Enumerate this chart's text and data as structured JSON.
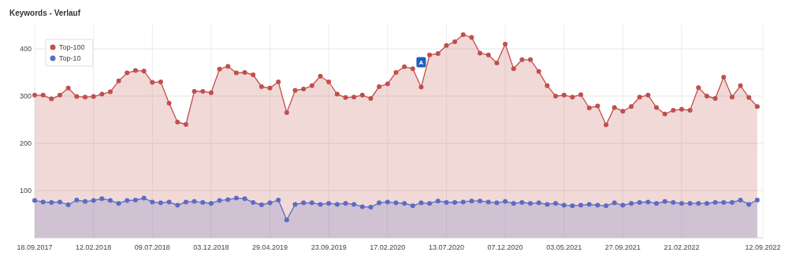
{
  "chart_data": {
    "type": "area",
    "title": "Keywords - Verlauf",
    "x": [
      "2017-09-18",
      "2017-10-09",
      "2017-10-30",
      "2017-11-20",
      "2017-12-11",
      "2018-01-01",
      "2018-01-22",
      "2018-02-12",
      "2018-03-05",
      "2018-03-26",
      "2018-04-16",
      "2018-05-07",
      "2018-05-28",
      "2018-06-18",
      "2018-07-09",
      "2018-07-30",
      "2018-08-20",
      "2018-09-10",
      "2018-10-01",
      "2018-10-22",
      "2018-11-12",
      "2018-12-03",
      "2018-12-24",
      "2019-01-14",
      "2019-02-04",
      "2019-02-25",
      "2019-03-18",
      "2019-04-08",
      "2019-04-29",
      "2019-05-20",
      "2019-06-10",
      "2019-07-01",
      "2019-07-22",
      "2019-08-12",
      "2019-09-02",
      "2019-09-23",
      "2019-10-14",
      "2019-11-04",
      "2019-11-25",
      "2019-12-16",
      "2020-01-06",
      "2020-01-27",
      "2020-02-17",
      "2020-03-09",
      "2020-03-30",
      "2020-04-20",
      "2020-05-11",
      "2020-06-01",
      "2020-06-22",
      "2020-07-13",
      "2020-08-03",
      "2020-08-24",
      "2020-09-14",
      "2020-10-05",
      "2020-10-26",
      "2020-11-16",
      "2020-12-07",
      "2020-12-28",
      "2021-01-18",
      "2021-02-08",
      "2021-03-01",
      "2021-03-22",
      "2021-04-12",
      "2021-05-03",
      "2021-05-24",
      "2021-06-14",
      "2021-07-05",
      "2021-07-26",
      "2021-08-16",
      "2021-09-06",
      "2021-09-27",
      "2021-10-18",
      "2021-11-08",
      "2021-11-29",
      "2021-12-20",
      "2022-01-10",
      "2022-01-31",
      "2022-02-21",
      "2022-03-14",
      "2022-04-04",
      "2022-04-25",
      "2022-05-16",
      "2022-06-06",
      "2022-06-27",
      "2022-07-18",
      "2022-08-08",
      "2022-08-29"
    ],
    "series": [
      {
        "name": "Top-100",
        "color": "#c0504d",
        "values": [
          302,
          302,
          294,
          302,
          317,
          299,
          298,
          299,
          304,
          309,
          332,
          349,
          354,
          353,
          329,
          330,
          285,
          245,
          240,
          310,
          310,
          307,
          357,
          363,
          349,
          350,
          345,
          320,
          317,
          330,
          265,
          312,
          315,
          322,
          342,
          330,
          304,
          297,
          298,
          302,
          295,
          320,
          326,
          350,
          362,
          358,
          319,
          387,
          390,
          407,
          415,
          430,
          424,
          391,
          387,
          370,
          410,
          358,
          377,
          377,
          352,
          322,
          300,
          302,
          298,
          303,
          275,
          279,
          239,
          276,
          268,
          278,
          298,
          302,
          276,
          262,
          270,
          272,
          270,
          318,
          300,
          295,
          340,
          298,
          322,
          297,
          278
        ]
      },
      {
        "name": "Top-10",
        "color": "#5b6cc4",
        "values": [
          79,
          76,
          75,
          76,
          70,
          80,
          77,
          79,
          83,
          79,
          73,
          79,
          80,
          84,
          76,
          74,
          76,
          69,
          76,
          77,
          75,
          73,
          79,
          81,
          84,
          83,
          75,
          70,
          74,
          80,
          38,
          71,
          74,
          74,
          71,
          73,
          71,
          73,
          71,
          66,
          65,
          74,
          76,
          74,
          73,
          68,
          74,
          73,
          78,
          75,
          75,
          76,
          78,
          78,
          76,
          74,
          77,
          73,
          75,
          73,
          74,
          71,
          73,
          69,
          68,
          69,
          71,
          69,
          68,
          74,
          69,
          73,
          75,
          76,
          73,
          77,
          75,
          73,
          73,
          73,
          73,
          75,
          75,
          75,
          80,
          71,
          80
        ]
      }
    ],
    "xlim": [
      "2017-09-18",
      "2022-09-12"
    ],
    "xticks": [
      {
        "value": "2017-09-18",
        "label": "18.09.2017"
      },
      {
        "value": "2018-02-12",
        "label": "12.02.2018"
      },
      {
        "value": "2018-07-09",
        "label": "09.07.2018"
      },
      {
        "value": "2018-12-03",
        "label": "03.12.2018"
      },
      {
        "value": "2019-04-29",
        "label": "29.04.2019"
      },
      {
        "value": "2019-09-23",
        "label": "23.09.2019"
      },
      {
        "value": "2020-02-17",
        "label": "17.02.2020"
      },
      {
        "value": "2020-07-13",
        "label": "13.07.2020"
      },
      {
        "value": "2020-12-07",
        "label": "07.12.2020"
      },
      {
        "value": "2021-05-03",
        "label": "03.05.2021"
      },
      {
        "value": "2021-09-27",
        "label": "27.09.2021"
      },
      {
        "value": "2022-02-21",
        "label": "21.02.2022"
      },
      {
        "value": "2022-09-12",
        "label": "12.09.2022"
      }
    ],
    "ylim": [
      0,
      450
    ],
    "yticks": [
      100,
      200,
      300,
      400
    ],
    "annotations": [
      {
        "text": "A",
        "x": "2020-05-11",
        "y": 371
      }
    ],
    "grid": true,
    "legend": "top left",
    "marker": "circle"
  }
}
